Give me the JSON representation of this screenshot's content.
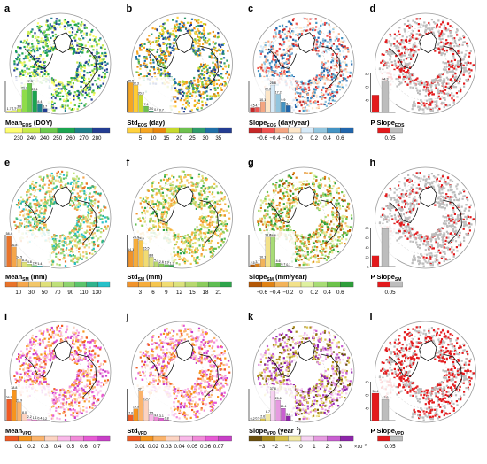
{
  "figure": {
    "coast_color": "#111111",
    "panels": [
      {
        "letter": "a",
        "title": "Mean",
        "sub": "EOS",
        "suffix": " (DOY)",
        "kind": "seq",
        "palette": [
          "#fdfd70",
          "#c8ea4a",
          "#6cc94d",
          "#1ba44f",
          "#1f7f8a",
          "#233d92"
        ],
        "ticks": [
          "230",
          "240",
          "240",
          "250",
          "260",
          "270",
          "280"
        ],
        "bars": [
          {
            "v": 1.7,
            "c": "#fdfd70",
            "t": "1.7"
          },
          {
            "v": 1.9,
            "c": "#e3f35b",
            "t": "1.9"
          },
          {
            "v": 3.6,
            "c": "#c8ea4a",
            "t": "3.6"
          },
          {
            "v": 21.2,
            "c": "#8fdc4a",
            "t": "21.2"
          },
          {
            "v": 27.3,
            "c": "#6cc94d",
            "t": "27.3"
          },
          {
            "v": 20.1,
            "c": "#1ba44f",
            "t": "20.1"
          },
          {
            "v": 8.4,
            "c": "#1f7f8a",
            "t": "8.4"
          },
          {
            "v": 3.7,
            "c": "#233d92",
            "t": "3.7"
          }
        ],
        "bars_max": 30
      },
      {
        "letter": "b",
        "title": "Std",
        "sub": "EOS",
        "suffix": " (day)",
        "kind": "seq",
        "palette": [
          "#ffd23f",
          "#f5a623",
          "#e8860c",
          "#c6d92d",
          "#6ec04f",
          "#2e9b6b",
          "#1f6fa8",
          "#233d92"
        ],
        "ticks": [
          "5",
          "10",
          "15",
          "20",
          "25",
          "30",
          "35"
        ],
        "bars": [
          {
            "v": 35.5,
            "c": "#f5a623",
            "t": "35.5"
          },
          {
            "v": 32.3,
            "c": "#ffcc33",
            "t": "32.3"
          },
          {
            "v": 20.8,
            "c": "#c6d92d",
            "t": "20.8"
          },
          {
            "v": 7.4,
            "c": "#6ec04f",
            "t": "7.4"
          },
          {
            "v": 2.0,
            "c": "#2e9b6b",
            "t": "2.0"
          },
          {
            "v": 0.9,
            "c": "#1f6fa8",
            "t": "0.9"
          },
          {
            "v": 0.7,
            "c": "#233d92",
            "t": "0.7"
          }
        ],
        "bars_max": 38
      },
      {
        "letter": "c",
        "title": "Slope",
        "sub": "EOS",
        "suffix": " (day/year)",
        "kind": "div",
        "palette": [
          "#c62828",
          "#ef5350",
          "#f4a582",
          "#fde6c8",
          "#d6eaf8",
          "#92c5de",
          "#4393c3",
          "#2166ac"
        ],
        "ticks": [
          "−0.6",
          "−0.4",
          "−0.2",
          "0",
          "0.2",
          "0.4",
          "0.6"
        ],
        "bars": [
          {
            "v": 4.5,
            "c": "#c62828",
            "t": "4.5"
          },
          {
            "v": 4.7,
            "c": "#ef5350",
            "t": "4.7"
          },
          {
            "v": 10.1,
            "c": "#f4a582",
            "t": "10.1"
          },
          {
            "v": 20.3,
            "c": "#fde6c8",
            "t": "20.3"
          },
          {
            "v": 25.8,
            "c": "#d6eaf8",
            "t": "25.8"
          },
          {
            "v": 17.2,
            "c": "#92c5de",
            "t": "17.2"
          },
          {
            "v": 9.9,
            "c": "#4393c3",
            "t": "9.9"
          },
          {
            "v": 6.4,
            "c": "#2166ac",
            "t": "6.4"
          }
        ],
        "bars_max": 30
      },
      {
        "letter": "d",
        "title": "P Slope",
        "sub": "EOS",
        "suffix": "",
        "kind": "p",
        "palette": [
          "#e31a1c",
          "#bdbdbd"
        ],
        "ticks": [
          "0.05"
        ],
        "bars": [
          {
            "v": 35.7,
            "c": "#e31a1c",
            "t": ""
          },
          {
            "v": 64.3,
            "c": "#bdbdbd",
            "t": "64.3"
          }
        ],
        "bars_max": 80,
        "y_ticks": [
          "80",
          "60",
          "40"
        ]
      },
      {
        "letter": "e",
        "title": "Mean",
        "sub": "SM",
        "suffix": " (mm)",
        "kind": "seq",
        "palette": [
          "#e8732a",
          "#f5a64a",
          "#f2c76a",
          "#dfe07a",
          "#bfe07a",
          "#8fd36f",
          "#5cc46d",
          "#2fb38e",
          "#27c0c9"
        ],
        "ticks": [
          "10",
          "30",
          "50",
          "70",
          "90",
          "110",
          "130"
        ],
        "bars": [
          {
            "v": 58.4,
            "c": "#e8732a",
            "t": "58.4"
          },
          {
            "v": 36.8,
            "c": "#f5a64a",
            "t": "36.8"
          },
          {
            "v": 14.5,
            "c": "#f2c76a",
            "t": "14.5"
          },
          {
            "v": 8.3,
            "c": "#dfe07a",
            "t": "8.3"
          },
          {
            "v": 4.8,
            "c": "#bfe07a",
            "t": "4.8"
          },
          {
            "v": 2.4,
            "c": "#5cc46d",
            "t": "2.4"
          },
          {
            "v": 1.4,
            "c": "#27c0c9",
            "t": "1.4"
          }
        ],
        "bars_max": 60
      },
      {
        "letter": "f",
        "title": "Std",
        "sub": "SM",
        "suffix": " (mm)",
        "kind": "seq",
        "palette": [
          "#f0932b",
          "#f6ad3c",
          "#f5c54f",
          "#f1dc73",
          "#dce27e",
          "#b8d870",
          "#8ccc5d",
          "#5fbd52",
          "#2ea44b"
        ],
        "ticks": [
          "3",
          "6",
          "9",
          "12",
          "15",
          "18",
          "21"
        ],
        "bars": [
          {
            "v": 14.1,
            "c": "#f0932b",
            "t": "14.1"
          },
          {
            "v": 25.9,
            "c": "#f6ad3c",
            "t": "25.9"
          },
          {
            "v": 24.6,
            "c": "#f5c54f",
            "t": "24.6"
          },
          {
            "v": 15.5,
            "c": "#f1dc73",
            "t": "15.5"
          },
          {
            "v": 8.8,
            "c": "#dce27e",
            "t": "8.8"
          },
          {
            "v": 4.5,
            "c": "#b8d870",
            "t": "4.5"
          },
          {
            "v": 2.6,
            "c": "#8ccc5d",
            "t": "2.6"
          },
          {
            "v": 1.9,
            "c": "#5fbd52",
            "t": "1.9"
          },
          {
            "v": 1.3,
            "c": "#2ea44b",
            "t": "1.3"
          }
        ],
        "bars_max": 30
      },
      {
        "letter": "g",
        "title": "Slope",
        "sub": "SM",
        "suffix": " (mm/year)",
        "kind": "div",
        "palette": [
          "#b35806",
          "#e08214",
          "#f2b35a",
          "#f2e18a",
          "#dff0a0",
          "#a8dc76",
          "#6cc24a",
          "#2e9e3a"
        ],
        "ticks": [
          "−0.6",
          "−0.4",
          "−0.2",
          "0",
          "0.2",
          "0.4",
          "0.6"
        ],
        "bars": [
          {
            "v": 2.5,
            "c": "#b35806",
            "t": "2.5"
          },
          {
            "v": 3.7,
            "c": "#e08214",
            "t": "3.7"
          },
          {
            "v": 10.1,
            "c": "#f2b35a",
            "t": "10.1"
          },
          {
            "v": 38.8,
            "c": "#f2e18a",
            "t": "38.8"
          },
          {
            "v": 38.6,
            "c": "#a8dc76",
            "t": "38.6"
          },
          {
            "v": 4.6,
            "c": "#6cc24a",
            "t": "4.6"
          },
          {
            "v": 0.7,
            "c": "#4caf3c",
            "t": "0.7"
          },
          {
            "v": 0.1,
            "c": "#2e9e3a",
            "t": "0.1"
          }
        ],
        "bars_max": 42
      },
      {
        "letter": "h",
        "title": "P Slope",
        "sub": "SM",
        "suffix": "",
        "kind": "p",
        "palette": [
          "#e31a1c",
          "#bdbdbd"
        ],
        "ticks": [
          "0.05"
        ],
        "bars": [
          {
            "v": 22.0,
            "c": "#e31a1c",
            "t": ""
          },
          {
            "v": 78.0,
            "c": "#bdbdbd",
            "t": ""
          }
        ],
        "bars_max": 80,
        "y_ticks": [
          "80",
          "60",
          "40",
          "20",
          "0"
        ]
      },
      {
        "letter": "i",
        "title": "Mean",
        "sub": "VPD",
        "suffix": "",
        "kind": "seq",
        "palette": [
          "#f15a24",
          "#f7941d",
          "#fbb36b",
          "#fcd3c1",
          "#f9b8e8",
          "#f28ad9",
          "#e75ad4",
          "#c93fc8"
        ],
        "ticks": [
          "0.1",
          "0.2",
          "0.3",
          "0.4",
          "0.5",
          "0.6",
          "0.7"
        ],
        "bars": [
          {
            "v": 26.5,
            "c": "#f15a24",
            "t": "26.5"
          },
          {
            "v": 38.8,
            "c": "#f7941d",
            "t": "38.8"
          },
          {
            "v": 22.9,
            "c": "#fbb36b",
            "t": "22.9"
          },
          {
            "v": 8.0,
            "c": "#fcd3c1",
            "t": "8.0"
          },
          {
            "v": 2.2,
            "c": "#f9b8e8",
            "t": "2.2"
          },
          {
            "v": 1.1,
            "c": "#f28ad9",
            "t": "1.1"
          },
          {
            "v": 0.4,
            "c": "#e75ad4",
            "t": "0.4"
          },
          {
            "v": 0.2,
            "c": "#c93fc8",
            "t": "0.2"
          }
        ],
        "bars_max": 40
      },
      {
        "letter": "j",
        "title": "Std",
        "sub": "VPD",
        "suffix": "",
        "kind": "seq",
        "palette": [
          "#f15a24",
          "#f7941d",
          "#fbb36b",
          "#fcd3c1",
          "#f9b8e8",
          "#f28ad9",
          "#e75ad4",
          "#c93fc8"
        ],
        "ticks": [
          "0.01",
          "0.02",
          "0.03",
          "0.04",
          "0.05",
          "0.06",
          "0.07"
        ],
        "bars": [
          {
            "v": 7.0,
            "c": "#f15a24",
            "t": "7.0"
          },
          {
            "v": 14.9,
            "c": "#f7941d",
            "t": "14.9"
          },
          {
            "v": 37.1,
            "c": "#fbb36b",
            "t": "37.1"
          },
          {
            "v": 25.0,
            "c": "#fcd3c1",
            "t": "25.0"
          },
          {
            "v": 7.5,
            "c": "#f9b8e8",
            "t": "7.5"
          },
          {
            "v": 4.6,
            "c": "#f28ad9",
            "t": "4.6"
          },
          {
            "v": 3.1,
            "c": "#e75ad4",
            "t": "3.1"
          },
          {
            "v": 0.8,
            "c": "#c93fc8",
            "t": "0.8"
          }
        ],
        "bars_max": 40
      },
      {
        "letter": "k",
        "title": "Slope",
        "sub": "VPD",
        "suffix": " (year",
        "sup": "−1",
        "suffix2": ")",
        "kind": "div",
        "palette": [
          "#6b4f0c",
          "#a88a1a",
          "#d9c24b",
          "#f2e9a4",
          "#f6d2f1",
          "#e69ae0",
          "#c95fd1",
          "#8e24aa"
        ],
        "ticks": [
          "−3",
          "−2",
          "−1",
          "0",
          "1",
          "2",
          "3"
        ],
        "tick_extra": "×10",
        "tick_extra_sup": "−3",
        "bars": [
          {
            "v": 0.2,
            "c": "#6b4f0c",
            "t": "0.2"
          },
          {
            "v": 0.5,
            "c": "#a88a1a",
            "t": "0.5"
          },
          {
            "v": 2.6,
            "c": "#d9c24b",
            "t": "2.6"
          },
          {
            "v": 8.7,
            "c": "#f2e9a4",
            "t": "8.7"
          },
          {
            "v": 37.8,
            "c": "#f6d2f1",
            "t": "37.8"
          },
          {
            "v": 25.6,
            "c": "#e69ae0",
            "t": "25.6"
          },
          {
            "v": 15.4,
            "c": "#c95fd1",
            "t": "15.4"
          },
          {
            "v": 5.8,
            "c": "#8e24aa",
            "t": "5.8"
          }
        ],
        "bars_max": 40
      },
      {
        "letter": "l",
        "title": "P Slope",
        "sub": "VPD",
        "suffix": "",
        "kind": "p",
        "palette": [
          "#e31a1c",
          "#bdbdbd"
        ],
        "ticks": [
          "0.05"
        ],
        "bars": [
          {
            "v": 56.4,
            "c": "#e31a1c",
            "t": "56.4"
          },
          {
            "v": 43.6,
            "c": "#bdbdbd",
            "t": "43.6"
          }
        ],
        "bars_max": 80,
        "y_ticks": [
          "80",
          "60",
          "40"
        ]
      }
    ]
  }
}
